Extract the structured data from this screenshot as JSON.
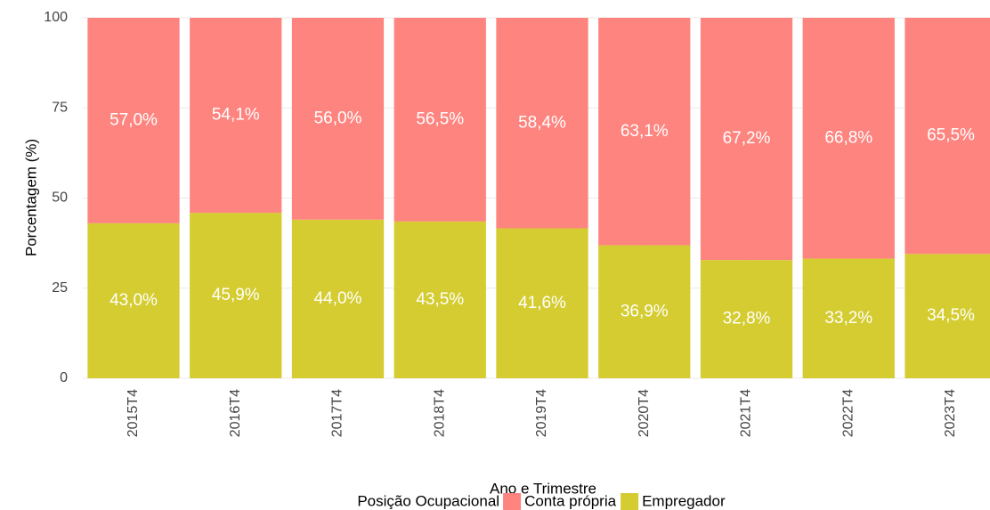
{
  "chart_data": {
    "type": "stacked_bar",
    "x_label": "Ano e Trimestre",
    "y_label": "Porcentagem (%)",
    "legend_title": "Posição Ocupacional",
    "legend_position": "bottom",
    "grid": true,
    "categories": [
      "2015T4",
      "2016T4",
      "2017T4",
      "2018T4",
      "2019T4",
      "2020T4",
      "2021T4",
      "2022T4",
      "2023T4"
    ],
    "ylim": [
      0,
      100
    ],
    "yticks": [
      0,
      25,
      50,
      75,
      100
    ],
    "series": [
      {
        "name": "Conta própria",
        "color": "#fe847f",
        "values": [
          57.0,
          54.1,
          56.0,
          56.5,
          58.4,
          63.1,
          67.2,
          66.8,
          65.5
        ],
        "value_labels": [
          "57,0%",
          "54,1%",
          "56,0%",
          "56,5%",
          "58,4%",
          "63,1%",
          "67,2%",
          "66,8%",
          "65,5%"
        ]
      },
      {
        "name": "Empregador",
        "color": "#d4cc30",
        "values": [
          43.0,
          45.9,
          44.0,
          43.5,
          41.6,
          36.9,
          32.8,
          33.2,
          34.5
        ],
        "value_labels": [
          "43,0%",
          "45,9%",
          "44,0%",
          "43,5%",
          "41,6%",
          "36,9%",
          "32,8%",
          "33,2%",
          "34,5%"
        ]
      }
    ]
  }
}
